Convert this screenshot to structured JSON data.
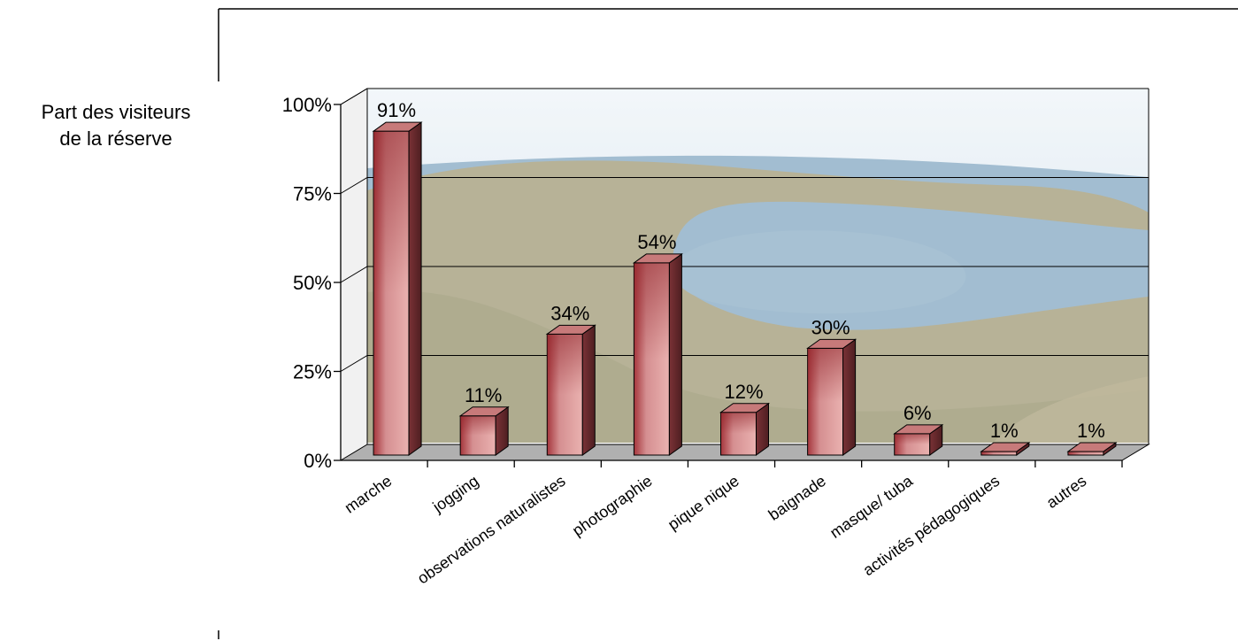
{
  "chart_data": {
    "type": "bar",
    "title": "",
    "xlabel": "",
    "ylabel_lines": [
      "Part des visiteurs",
      "de la réserve"
    ],
    "categories": [
      "marche",
      "jogging",
      "observations naturalistes",
      "photographie",
      "pique nique",
      "baignade",
      "masque/ tuba",
      "activités pédagogiques",
      "autres"
    ],
    "values": [
      91,
      11,
      34,
      54,
      12,
      30,
      6,
      1,
      1
    ],
    "value_labels": [
      "91%",
      "11%",
      "34%",
      "54%",
      "12%",
      "30%",
      "6%",
      "1%",
      "1%"
    ],
    "ylim": [
      0,
      100
    ],
    "y_ticks": [
      0,
      25,
      50,
      75,
      100
    ],
    "y_tick_labels": [
      "0%",
      "25%",
      "50%",
      "75%",
      "100%"
    ],
    "grid": true,
    "legend": "none",
    "style": "3d-bar",
    "colors": {
      "bar_front_light": "#e8a8a8",
      "bar_front_dark": "#9a2f35",
      "bar_side": "#6a2a2e",
      "bar_top": "#c77a7a",
      "floor": "#b0b0b0",
      "grid": "#000000",
      "wall_sky": "#cfe0ea",
      "wall_sea": "#6e98b6",
      "wall_land": "#98936a"
    }
  }
}
